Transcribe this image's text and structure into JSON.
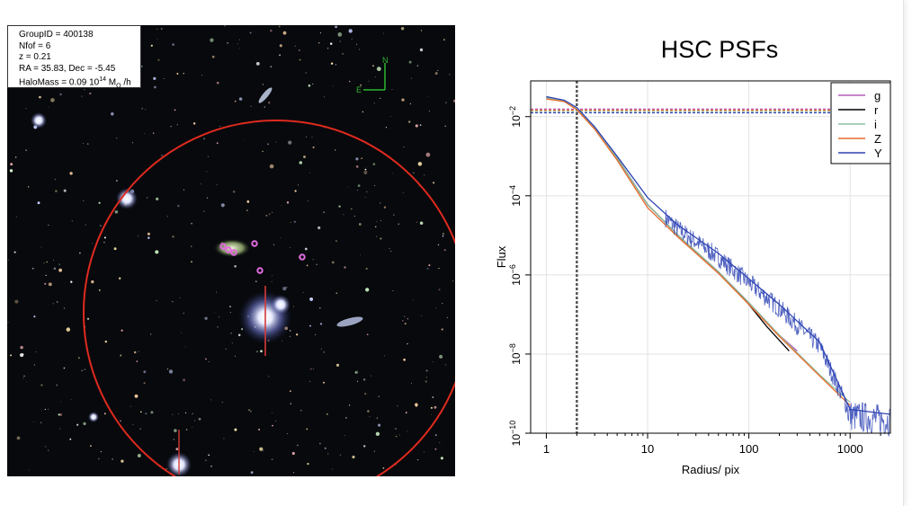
{
  "info_box": {
    "group_id": "GroupID = 400138",
    "nfof": "Nfof = 6",
    "z": "z = 0.21",
    "ra_dec": "RA = 35.83, Dec = -5.45",
    "halomass_prefix": "HaloMass =  0.09 10",
    "halomass_exp": "14",
    "halomass_unit": " M",
    "halomass_sub": "O",
    "halomass_suffix": " /h"
  },
  "compass": {
    "north": "N",
    "east": "E"
  },
  "colors": {
    "circle": "#e02a1f",
    "member_marker": "#e36be0",
    "compass": "#2fb52f",
    "g": "#b85ab8",
    "r": "#000000",
    "i": "#8fbf9f",
    "Z": "#e86a2a",
    "Y": "#2f44b5"
  },
  "chart_data": {
    "type": "line",
    "title": "HSC PSFs",
    "xlabel": "Radius/ pix",
    "ylabel": "Flux",
    "xscale": "log",
    "yscale": "log",
    "xlim": [
      0.7,
      2500
    ],
    "ylim": [
      1e-10,
      0.08
    ],
    "xticks": [
      1,
      10,
      100,
      1000
    ],
    "xtick_labels": [
      "1",
      "10",
      "100",
      "1000"
    ],
    "yticks": [
      1e-10,
      1e-08,
      1e-06,
      0.0001,
      0.01
    ],
    "ytick_base": [
      "10",
      "10",
      "10",
      "10",
      "10"
    ],
    "ytick_exp": [
      "−10",
      "−8",
      "−6",
      "−4",
      "−2"
    ],
    "grid": true,
    "legend_position": "top-right",
    "vertical_line_x": 2,
    "series": [
      {
        "name": "g",
        "color": "#b85ab8",
        "x": [
          1,
          1.5,
          2,
          3,
          5,
          10,
          20,
          50,
          100,
          200,
          300
        ],
        "y": [
          0.03,
          0.025,
          0.016,
          0.005,
          0.0009,
          6e-05,
          1e-05,
          1.2e-06,
          2e-07,
          3e-08,
          1.2e-08
        ]
      },
      {
        "name": "r",
        "color": "#000000",
        "x": [
          1,
          1.5,
          2,
          3,
          5,
          10,
          20,
          50,
          100,
          150,
          250
        ],
        "y": [
          0.03,
          0.025,
          0.016,
          0.005,
          0.0009,
          6e-05,
          1e-05,
          1.2e-06,
          1.8e-07,
          5e-08,
          1.2e-08
        ]
      },
      {
        "name": "i",
        "color": "#8fbf9f",
        "x": [
          1,
          1.5,
          2,
          3,
          5,
          10,
          20,
          50,
          100,
          200,
          500,
          1000
        ],
        "y": [
          0.03,
          0.025,
          0.016,
          0.005,
          0.0009,
          6e-05,
          1e-05,
          1.2e-06,
          2e-07,
          3e-08,
          3e-09,
          6e-10
        ]
      },
      {
        "name": "Z",
        "color": "#e86a2a",
        "x": [
          1,
          1.5,
          2,
          3,
          5,
          10,
          20,
          50,
          100,
          200,
          500,
          1000
        ],
        "y": [
          0.028,
          0.024,
          0.015,
          0.0048,
          0.0008,
          5e-05,
          9e-06,
          1.1e-06,
          1.8e-07,
          2.8e-08,
          2.8e-09,
          5e-10
        ]
      },
      {
        "name": "Y",
        "color": "#2f44b5",
        "x": [
          1,
          1.5,
          2,
          3,
          5,
          10,
          20,
          50,
          100,
          200,
          500,
          1000,
          2500
        ],
        "y": [
          0.032,
          0.026,
          0.017,
          0.0055,
          0.001,
          9e-05,
          1.8e-05,
          3.5e-06,
          8e-07,
          1.8e-07,
          2e-08,
          4e-10,
          3e-10
        ]
      }
    ],
    "dashed_levels": [
      {
        "series": "g",
        "y": 0.0155
      },
      {
        "series": "Z",
        "y": 0.0145
      },
      {
        "series": "i",
        "y": 0.0135
      },
      {
        "series": "Y",
        "y": 0.0125
      }
    ]
  }
}
